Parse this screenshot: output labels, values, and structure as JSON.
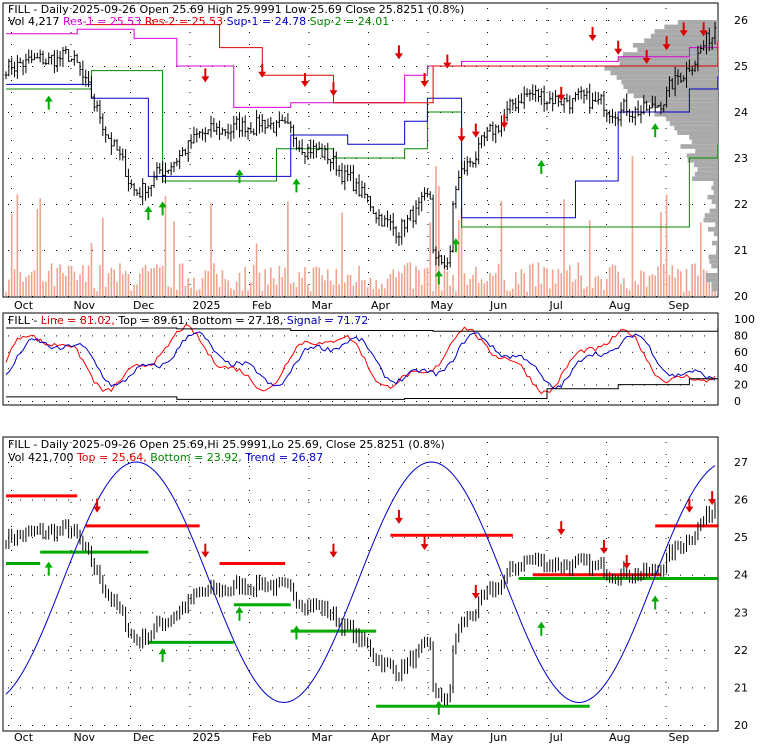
{
  "symbol": "FILL",
  "colors": {
    "up": "#000000",
    "down": "#000000",
    "volume": "#f0a48f",
    "res": "#dd00dd",
    "sup": "#0000cc",
    "sup2": "#008800",
    "arrow_down": "#dd0000",
    "arrow_up": "#00aa00",
    "profile": "#aaaaaa",
    "line": "#ff0000",
    "signal": "#0000cc",
    "topbottom": "#000000",
    "trend": "#0000cc",
    "top_line": "#ff0000",
    "bottom_line": "#00aa00"
  },
  "months": [
    "Oct",
    "Nov",
    "Dec",
    "2025",
    "Feb",
    "Mar",
    "Apr",
    "May",
    "Jun",
    "Jul",
    "Aug",
    "Sep"
  ],
  "panel1": {
    "header": "FILL - Daily 2025-09-26 Open 25.69  High 25.9991  Low 25.69  Close 25.8251 (0.8%)",
    "legend": [
      {
        "text": "Vol 4,217",
        "color": "#000000"
      },
      {
        "text": "Res-1 = 25.53",
        "color": "#dd00dd"
      },
      {
        "text": "Res-2 = 25.53",
        "color": "#dd0000"
      },
      {
        "text": "Sup-1 = 24.78",
        "color": "#0000cc"
      },
      {
        "text": "Sup-2 = 24.01",
        "color": "#008800"
      }
    ],
    "y_ticks": [
      "26",
      "25",
      "24",
      "23",
      "22",
      "21",
      "20"
    ]
  },
  "panel2": {
    "header": "FILL - ",
    "legend": [
      {
        "text": "Line = 81.02,",
        "color": "#dd0000"
      },
      {
        "text": "Top = 89.61,",
        "color": "#000000"
      },
      {
        "text": "Bottom = 27.18,",
        "color": "#000000"
      },
      {
        "text": "Signal = 71.72",
        "color": "#0000cc"
      }
    ],
    "y_ticks": [
      "100",
      "80",
      "60",
      "40",
      "20",
      "0"
    ]
  },
  "panel3": {
    "header": "FILL - Daily 2025-09-26 Open 25.69,Hi 25.9991,Lo 25.69, Close 25.8251 (0.8%)",
    "legend": [
      {
        "text": "Vol 421,700",
        "color": "#000000"
      },
      {
        "text": "Top = 25.64,",
        "color": "#dd0000"
      },
      {
        "text": "Bottom = 23.92,",
        "color": "#008800"
      },
      {
        "text": "Trend = 26.87",
        "color": "#0000cc"
      }
    ],
    "y_ticks": [
      "27",
      "26",
      "25",
      "24",
      "23",
      "22",
      "21",
      "20"
    ]
  },
  "chart_data": {
    "type": "line",
    "title": "FILL - Daily 2025-09-26",
    "last_bar": {
      "date": "2025-09-26",
      "open": 25.69,
      "high": 25.9991,
      "low": 25.69,
      "close": 25.8251,
      "change_pct": 0.8
    },
    "x_months": [
      "Oct",
      "Nov",
      "Dec",
      "2025",
      "Feb",
      "Mar",
      "Apr",
      "May",
      "Jun",
      "Jul",
      "Aug",
      "Sep"
    ],
    "price_ylim": [
      20,
      26
    ],
    "price_monthly_approx": [
      {
        "month": "Oct",
        "close": 25.0
      },
      {
        "month": "Nov",
        "close": 25.2
      },
      {
        "month": "Dec",
        "close": 22.2
      },
      {
        "month": "2025",
        "close": 23.5
      },
      {
        "month": "Feb",
        "close": 23.8
      },
      {
        "month": "Mar",
        "close": 23.0
      },
      {
        "month": "Apr",
        "close": 21.4
      },
      {
        "month": "May",
        "close": 22.6
      },
      {
        "month": "Jun",
        "close": 24.4
      },
      {
        "month": "Jul",
        "close": 24.2
      },
      {
        "month": "Aug",
        "close": 24.0
      },
      {
        "month": "Sep",
        "close": 25.8
      }
    ],
    "levels": {
      "res1": 25.53,
      "res2": 25.53,
      "sup1": 24.78,
      "sup2": 24.01
    },
    "oscillator": {
      "line": 81.02,
      "top": 89.61,
      "bottom": 27.18,
      "signal": 71.72,
      "ylim": [
        0,
        100
      ]
    },
    "trend_panel": {
      "volume": 421700,
      "top": 25.64,
      "bottom": 23.92,
      "trend": 26.87,
      "ylim": [
        20,
        27
      ]
    }
  }
}
